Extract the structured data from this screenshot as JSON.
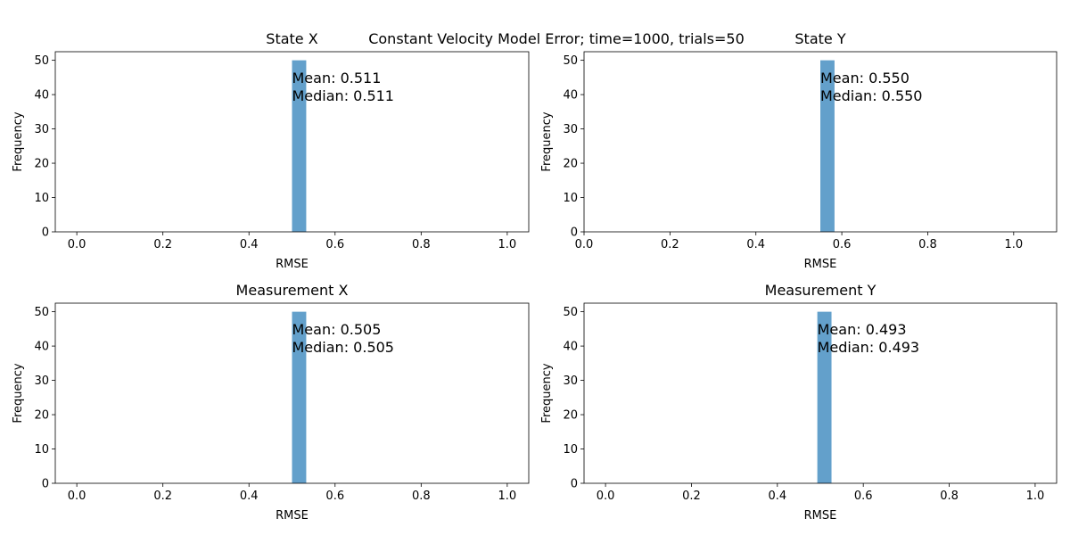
{
  "figure": {
    "suptitle": "Constant Velocity Model Error; time=1000, trials=50"
  },
  "chart_data": [
    {
      "type": "bar",
      "title": "State X",
      "xlabel": "RMSE",
      "ylabel": "Frequency",
      "xlim": [
        -0.05,
        1.05
      ],
      "ylim": [
        0,
        52.5
      ],
      "xticks": [
        0.0,
        0.2,
        0.4,
        0.6,
        0.8,
        1.0
      ],
      "xtick_labels": [
        "0.0",
        "0.2",
        "0.4",
        "0.6",
        "0.8",
        "1.0"
      ],
      "yticks": [
        0,
        10,
        20,
        30,
        40,
        50
      ],
      "ytick_labels": [
        "0",
        "10",
        "20",
        "30",
        "40",
        "50"
      ],
      "bars": [
        {
          "x0": 0.5,
          "x1": 0.533,
          "value": 50
        }
      ],
      "color": "#63a0cb",
      "annotation_lines": [
        "Mean: 0.511",
        "Median: 0.511"
      ]
    },
    {
      "type": "bar",
      "title": "State Y",
      "xlabel": "RMSE",
      "ylabel": "Frequency",
      "xlim": [
        0.0,
        1.1
      ],
      "ylim": [
        0,
        52.5
      ],
      "xticks": [
        0.0,
        0.2,
        0.4,
        0.6,
        0.8,
        1.0
      ],
      "xtick_labels": [
        "0.0",
        "0.2",
        "0.4",
        "0.6",
        "0.8",
        "1.0"
      ],
      "yticks": [
        0,
        10,
        20,
        30,
        40,
        50
      ],
      "ytick_labels": [
        "0",
        "10",
        "20",
        "30",
        "40",
        "50"
      ],
      "bars": [
        {
          "x0": 0.55,
          "x1": 0.583,
          "value": 50
        }
      ],
      "color": "#63a0cb",
      "annotation_lines": [
        "Mean: 0.550",
        "Median: 0.550"
      ]
    },
    {
      "type": "bar",
      "title": "Measurement X",
      "xlabel": "RMSE",
      "ylabel": "Frequency",
      "xlim": [
        -0.05,
        1.05
      ],
      "ylim": [
        0,
        52.5
      ],
      "xticks": [
        0.0,
        0.2,
        0.4,
        0.6,
        0.8,
        1.0
      ],
      "xtick_labels": [
        "0.0",
        "0.2",
        "0.4",
        "0.6",
        "0.8",
        "1.0"
      ],
      "yticks": [
        0,
        10,
        20,
        30,
        40,
        50
      ],
      "ytick_labels": [
        "0",
        "10",
        "20",
        "30",
        "40",
        "50"
      ],
      "bars": [
        {
          "x0": 0.5,
          "x1": 0.533,
          "value": 50
        }
      ],
      "color": "#63a0cb",
      "annotation_lines": [
        "Mean: 0.505",
        "Median: 0.505"
      ]
    },
    {
      "type": "bar",
      "title": "Measurement Y",
      "xlabel": "RMSE",
      "ylabel": "Frequency",
      "xlim": [
        -0.05,
        1.05
      ],
      "ylim": [
        0,
        52.5
      ],
      "xticks": [
        0.0,
        0.2,
        0.4,
        0.6,
        0.8,
        1.0
      ],
      "xtick_labels": [
        "0.0",
        "0.2",
        "0.4",
        "0.6",
        "0.8",
        "1.0"
      ],
      "yticks": [
        0,
        10,
        20,
        30,
        40,
        50
      ],
      "ytick_labels": [
        "0",
        "10",
        "20",
        "30",
        "40",
        "50"
      ],
      "bars": [
        {
          "x0": 0.493,
          "x1": 0.526,
          "value": 50
        }
      ],
      "color": "#63a0cb",
      "annotation_lines": [
        "Mean: 0.493",
        "Median: 0.493"
      ]
    }
  ]
}
